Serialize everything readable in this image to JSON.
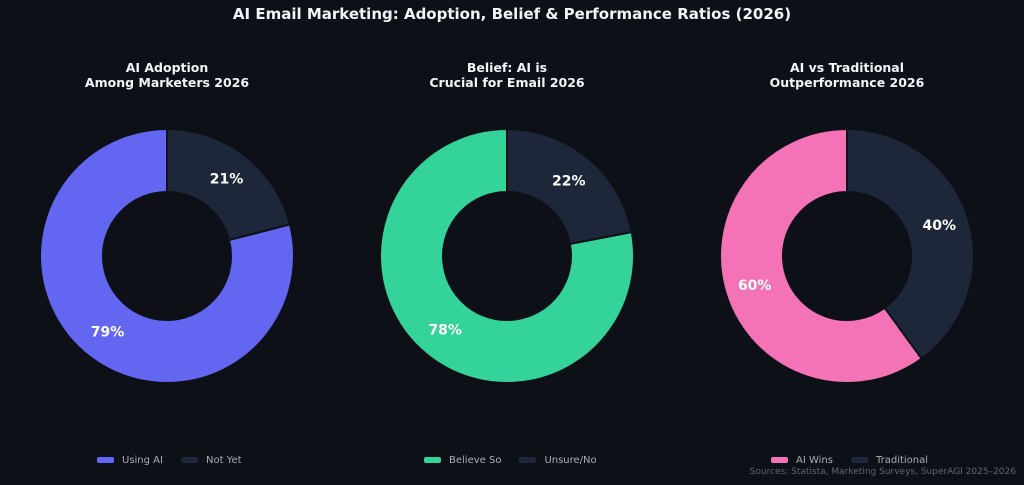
{
  "title": "AI Email Marketing: Adoption, Belief & Performance Ratios (2026)",
  "source": "Sources: Statista, Marketing Surveys, SuperAGI 2025–2026",
  "colors": {
    "background": "#0d1017",
    "hole": "#0d1017",
    "dark_slice": "#1e2739"
  },
  "chart_data": [
    {
      "type": "pie",
      "title_lines": [
        "AI Adoption",
        "Among Marketers 2026"
      ],
      "slices": [
        {
          "label": "Using AI",
          "value": 79,
          "display": "79%",
          "color": "#6366f1"
        },
        {
          "label": "Not Yet",
          "value": 21,
          "display": "21%",
          "color": "#1e2739"
        }
      ]
    },
    {
      "type": "pie",
      "title_lines": [
        "Belief: AI is",
        "Crucial for Email 2026"
      ],
      "slices": [
        {
          "label": "Believe So",
          "value": 78,
          "display": "78%",
          "color": "#34d399"
        },
        {
          "label": "Unsure/No",
          "value": 22,
          "display": "22%",
          "color": "#1e2739"
        }
      ]
    },
    {
      "type": "pie",
      "title_lines": [
        "AI vs Traditional",
        "Outperformance 2026"
      ],
      "slices": [
        {
          "label": "AI Wins",
          "value": 60,
          "display": "60%",
          "color": "#f472b6"
        },
        {
          "label": "Traditional",
          "value": 40,
          "display": "40%",
          "color": "#1e2739"
        }
      ]
    }
  ]
}
